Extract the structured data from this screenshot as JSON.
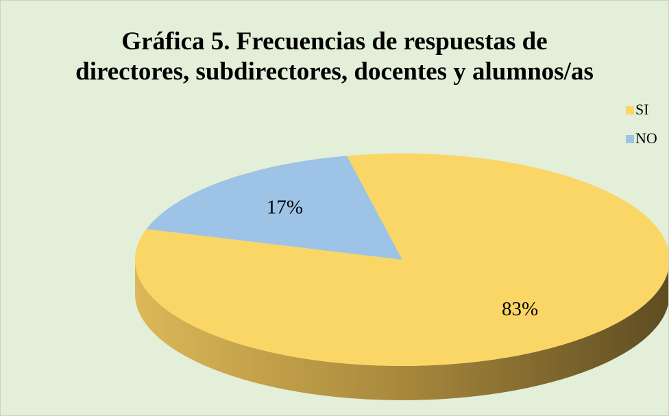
{
  "chart_data": {
    "type": "pie",
    "title": "Gráfica 5. Frecuencias de respuestas de directores, subdirectores, docentes y alumnos/as",
    "categories": [
      "SI",
      "NO"
    ],
    "values": [
      83,
      17
    ],
    "value_labels": [
      "83%",
      "17%"
    ],
    "colors": [
      "#f9d666",
      "#9dc3e6"
    ],
    "legend": "right"
  }
}
